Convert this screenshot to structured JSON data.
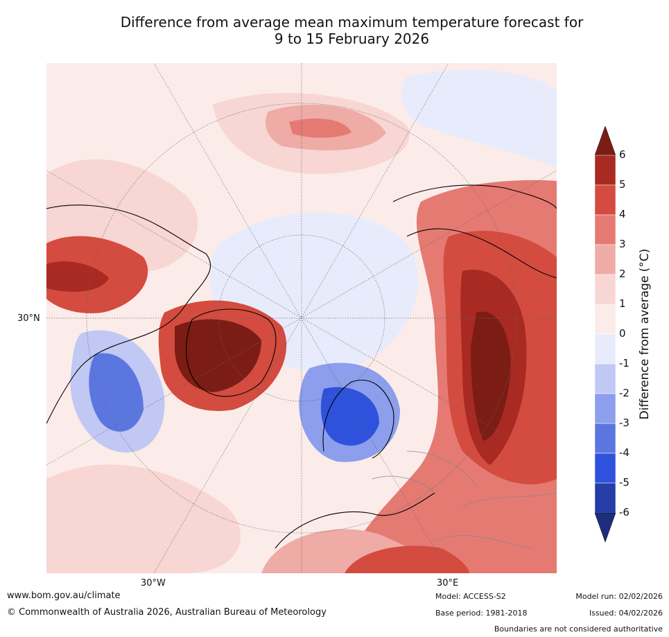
{
  "title": {
    "line1": "Difference from average mean maximum temperature forecast for",
    "line2": "9 to 15 February 2026"
  },
  "map": {
    "projection_labels": {
      "lat": "30°N",
      "lon_west": "30°W",
      "lon_east": "30°E"
    },
    "regions": {
      "arctic_ocean": "near average",
      "eastern_europe_russia": "well above average",
      "greenland_canada_arctic": "well above average",
      "alaska": "above average",
      "central_north_america": "below average",
      "scandinavia_baltic": "below average",
      "northern_africa_mediterranean": "above average"
    }
  },
  "colorbar": {
    "title": "Difference from average (°C)",
    "ticks": [
      "6",
      "5",
      "4",
      "3",
      "2",
      "1",
      "0",
      "-1",
      "-2",
      "-3",
      "-4",
      "-5",
      "-6"
    ],
    "colors": [
      "#a82a22",
      "#d44b3f",
      "#e57a73",
      "#efaba6",
      "#f7d6d3",
      "#fbece9",
      "#e8ebfb",
      "#c0c8f3",
      "#8c9eec",
      "#5c76e0",
      "#2f52dc",
      "#263ca6"
    ],
    "top_arrow_color": "#7b1d14",
    "bottom_arrow_color": "#1e2d7d"
  },
  "footer": {
    "url": "www.bom.gov.au/climate",
    "copyright": "© Commonwealth of Australia 2026, Australian Bureau of Meteorology",
    "model": "Model: ACCESS-S2",
    "base_period": "Base period: 1981-2018",
    "model_run": "Model run: 02/02/2026",
    "issued": "Issued: 04/02/2026",
    "disclaimer": "Boundaries are not considered authoritative"
  }
}
